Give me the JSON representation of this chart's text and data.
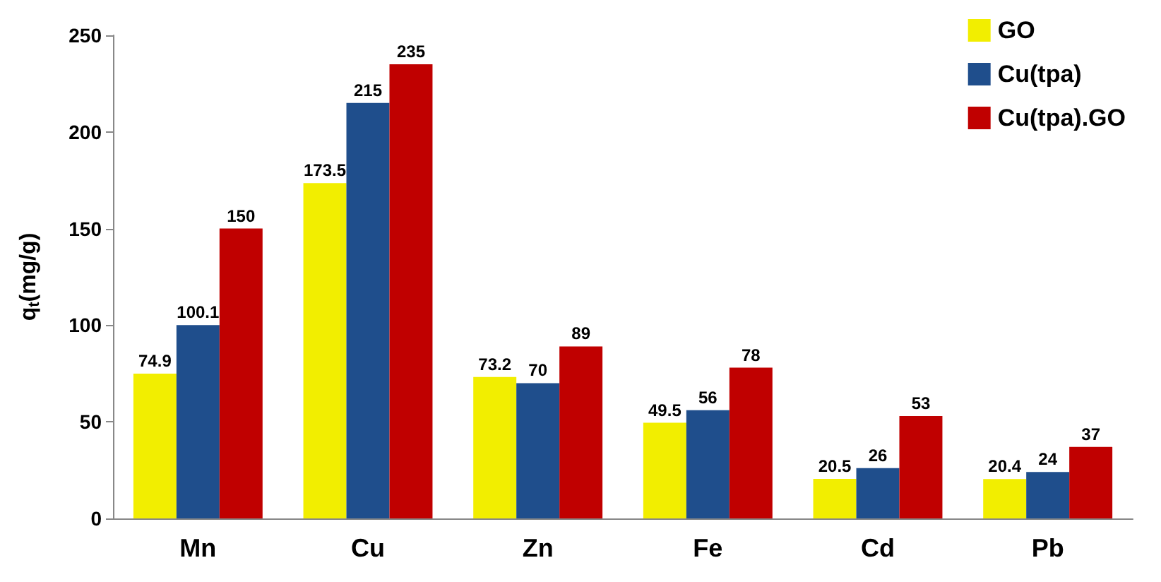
{
  "chart_data": {
    "type": "bar",
    "ylabel": "q$_{t}$(mg/g)",
    "categories": [
      "Mn",
      "Cu",
      "Zn",
      "Fe",
      "Cd",
      "Pb"
    ],
    "series": [
      {
        "name": "GO",
        "color": "#f2ee00",
        "values": [
          74.9,
          173.5,
          73.2,
          49.5,
          20.5,
          20.4
        ]
      },
      {
        "name": "Cu(tpa)",
        "color": "#1f4e8c",
        "values": [
          100.1,
          215,
          70,
          56,
          26,
          24
        ]
      },
      {
        "name": "Cu(tpa).GO",
        "color": "#c00000",
        "values": [
          150,
          235,
          89,
          78,
          53,
          37
        ]
      }
    ],
    "ylim": [
      0,
      250
    ],
    "yticks": [
      0,
      50,
      100,
      150,
      200,
      250
    ],
    "grid": false,
    "legend": "top right",
    "data_labels": true
  }
}
